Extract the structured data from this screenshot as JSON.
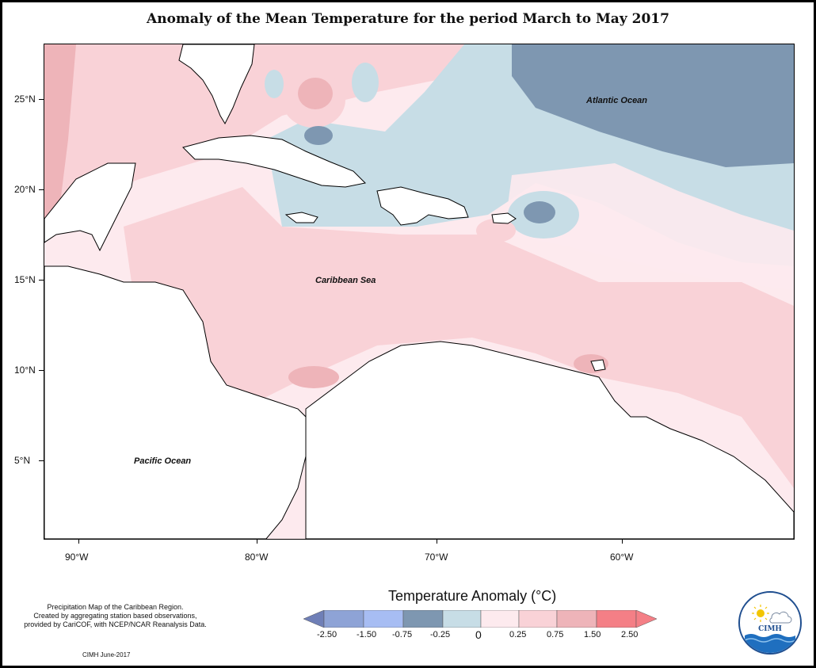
{
  "title": "Anomaly of the Mean Temperature for the period March to May 2017",
  "map": {
    "ocean_labels": {
      "atlantic": "Atlantic Ocean",
      "caribbean": "Caribbean Sea",
      "pacific": "Pacific Ocean"
    },
    "lat_ticks": [
      "25°N",
      "20°N",
      "15°N",
      "10°N",
      "5°N"
    ],
    "lon_ticks": [
      "90°W",
      "80°W",
      "70°W",
      "60°W"
    ]
  },
  "legend": {
    "title": "Temperature Anomaly (°C)",
    "labels": [
      "-2.50",
      "-1.50",
      "-0.75",
      "-0.25",
      "0",
      "0.25",
      "0.75",
      "1.50",
      "2.50"
    ],
    "colors": {
      "c1": "#6f7fb7",
      "c2": "#8ea3d6",
      "c3": "#a7bdf3",
      "c4": "#7e97b1",
      "c5": "#c7dde6",
      "c6": "#fdeaee",
      "c7": "#f9d2d7",
      "c8": "#eeb4b9",
      "c9": "#f47f86"
    }
  },
  "note": {
    "line1": "Precipitation Map of the Caribbean Region.",
    "line2": "Created by aggregating station based observations,",
    "line3": "provided by CariCOF, with NCEP/NCAR Reanalysis Data.",
    "credit": "CIMH June-2017"
  },
  "logo": {
    "name": "CIMH"
  }
}
